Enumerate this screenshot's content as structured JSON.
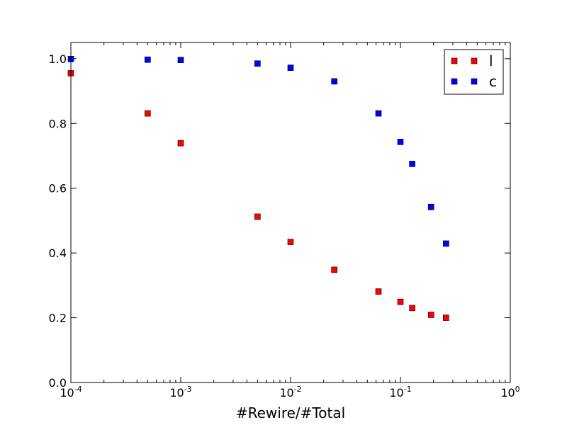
{
  "chart_data": {
    "type": "scatter",
    "xlabel": "#Rewire/#Total",
    "ylabel": "",
    "xscale": "log",
    "xlim": [
      0.0001,
      1
    ],
    "ylim": [
      0.0,
      1.05
    ],
    "x_ticks": [
      {
        "value": 0.0001,
        "base": "10",
        "exp": "-4"
      },
      {
        "value": 0.001,
        "base": "10",
        "exp": "-3"
      },
      {
        "value": 0.01,
        "base": "10",
        "exp": "-2"
      },
      {
        "value": 0.1,
        "base": "10",
        "exp": "-1"
      },
      {
        "value": 1,
        "base": "10",
        "exp": "0"
      }
    ],
    "y_ticks": [
      {
        "value": 0.0,
        "label": "0.0"
      },
      {
        "value": 0.2,
        "label": "0.2"
      },
      {
        "value": 0.4,
        "label": "0.4"
      },
      {
        "value": 0.6,
        "label": "0.6"
      },
      {
        "value": 0.8,
        "label": "0.8"
      },
      {
        "value": 1.0,
        "label": "1.0"
      }
    ],
    "legend_position": "top-right",
    "grid": false,
    "series": [
      {
        "name": "l",
        "color": "#ff0000",
        "marker": "square",
        "x": [
          0.0001,
          0.0005,
          0.001,
          0.005,
          0.01,
          0.025,
          0.0631,
          0.1,
          0.128,
          0.19,
          0.26
        ],
        "y": [
          0.955,
          0.831,
          0.739,
          0.512,
          0.434,
          0.348,
          0.281,
          0.249,
          0.23,
          0.209,
          0.2
        ]
      },
      {
        "name": "c",
        "color": "#0000ff",
        "marker": "square",
        "x": [
          0.0001,
          0.0005,
          0.001,
          0.005,
          0.01,
          0.025,
          0.0631,
          0.1,
          0.128,
          0.19,
          0.26
        ],
        "y": [
          0.999,
          0.997,
          0.996,
          0.985,
          0.972,
          0.93,
          0.831,
          0.743,
          0.675,
          0.542,
          0.429
        ]
      }
    ]
  }
}
